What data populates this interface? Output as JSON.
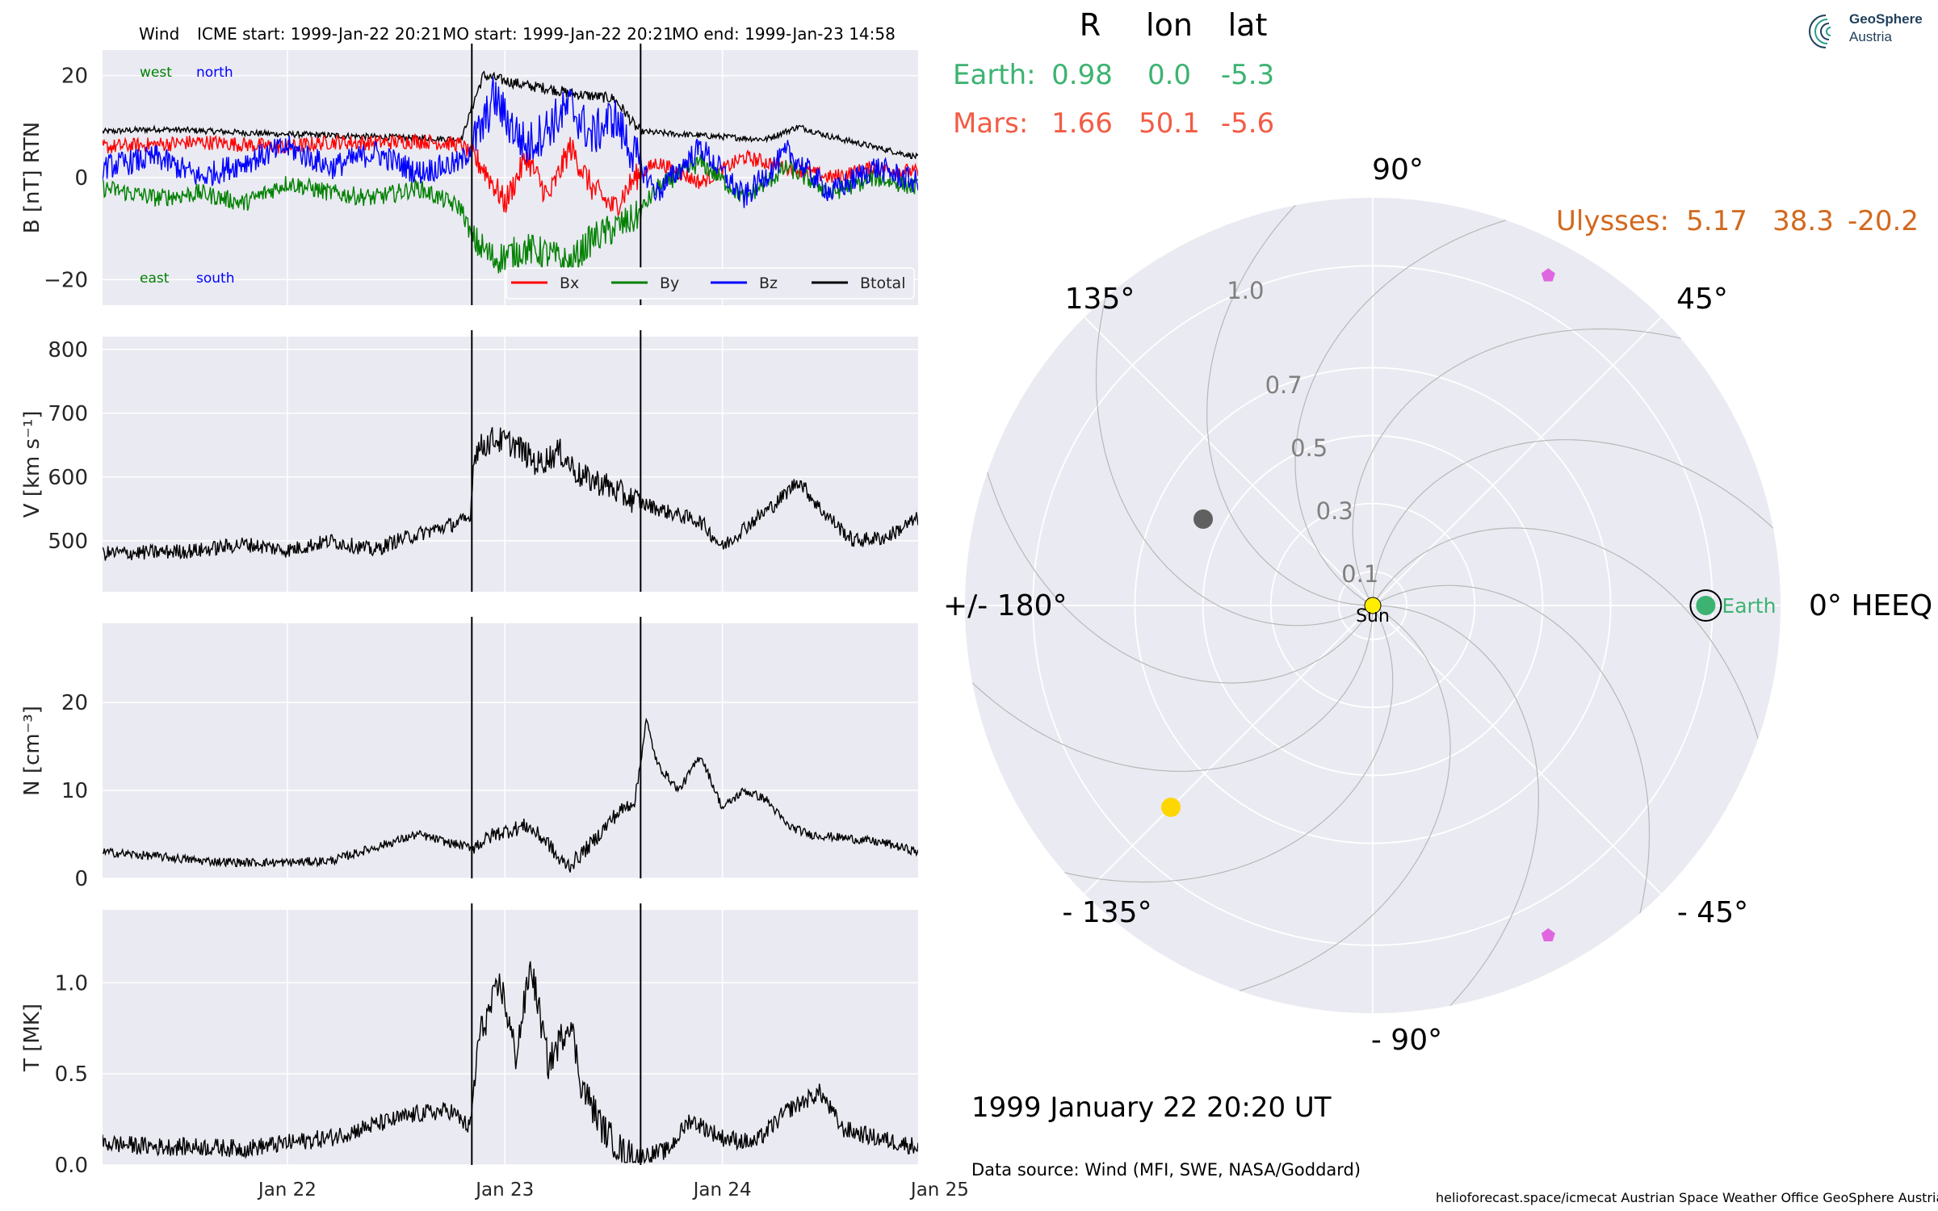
{
  "header": {
    "spacecraft": "Wind",
    "icme_start": "ICME start: 1999-Jan-22 20:21",
    "mo_start": "MO start: 1999-Jan-22 20:21",
    "mo_end": "MO end: 1999-Jan-23 14:58"
  },
  "colors": {
    "panel_bg": "#eaeaf2",
    "bx": "#ff0000",
    "by": "#008000",
    "bz": "#0000ff",
    "btotal": "#000000",
    "earth": "#3cb371",
    "mars": "#f25c45",
    "ulysses": "#d2691e",
    "sun": "#ffee00",
    "planet_yellow": "#ffd700",
    "planet_gray": "#606060",
    "pentagon": "#e066e0"
  },
  "chart_data": [
    {
      "type": "line",
      "name": "magnetic-field",
      "ylabel": "B [nT] RTN",
      "ylim": [
        -25,
        25
      ],
      "yticks": [
        -20,
        0,
        20
      ],
      "ytick_labels": [
        "−20",
        "0",
        "20"
      ],
      "xlim": [
        -0.85,
        2.9
      ],
      "x_unit": "days since 1999-01-22 00:00",
      "xticks": [
        0,
        1,
        2,
        3
      ],
      "xtick_labels": [
        "Jan 22",
        "Jan 23",
        "Jan 24",
        "Jan 25"
      ],
      "event_lines": [
        0.8479,
        1.624
      ],
      "corner_labels": {
        "west": "west",
        "north": "north",
        "east": "east",
        "south": "south"
      },
      "legend": [
        "Bx",
        "By",
        "Bz",
        "Btotal"
      ],
      "legend_placement": "lower-right",
      "series": [
        {
          "name": "Btotal",
          "x": [
            -0.85,
            -0.6,
            -0.4,
            -0.2,
            0.0,
            0.2,
            0.4,
            0.6,
            0.8,
            0.85,
            0.9,
            1.0,
            1.1,
            1.2,
            1.3,
            1.4,
            1.5,
            1.55,
            1.6,
            1.63,
            1.8,
            2.0,
            2.2,
            2.35,
            2.5,
            2.7,
            2.9
          ],
          "y": [
            9,
            9.5,
            9.2,
            8.8,
            8.5,
            8.3,
            8.0,
            7.8,
            7.5,
            14,
            20,
            19,
            18,
            17.5,
            16.5,
            16,
            15.5,
            13,
            10,
            9,
            8.5,
            8,
            7.5,
            10,
            8,
            6,
            4
          ]
        },
        {
          "name": "Bx",
          "x": [
            -0.85,
            -0.6,
            -0.4,
            -0.2,
            0.0,
            0.2,
            0.4,
            0.6,
            0.8,
            0.9,
            1.0,
            1.1,
            1.2,
            1.3,
            1.4,
            1.5,
            1.6,
            1.7,
            1.9,
            2.1,
            2.3,
            2.5,
            2.7,
            2.9
          ],
          "y": [
            6,
            6.5,
            7,
            6.5,
            6,
            7,
            6.8,
            7.2,
            6.5,
            2,
            -5,
            4,
            -4,
            6,
            -2,
            -6,
            0,
            3,
            -1,
            4,
            2,
            0,
            2,
            1
          ]
        },
        {
          "name": "By",
          "x": [
            -0.85,
            -0.6,
            -0.4,
            -0.2,
            0.0,
            0.2,
            0.4,
            0.6,
            0.8,
            0.85,
            0.95,
            1.1,
            1.2,
            1.3,
            1.4,
            1.5,
            1.6,
            1.7,
            1.9,
            2.1,
            2.3,
            2.5,
            2.7,
            2.9
          ],
          "y": [
            -2,
            -4,
            -3,
            -5,
            -1,
            -3,
            -4,
            -2,
            -6,
            -12,
            -16,
            -14,
            -15,
            -17,
            -12,
            -10,
            -8,
            -2,
            3,
            -4,
            2,
            -3,
            0,
            -2
          ]
        },
        {
          "name": "Bz",
          "x": [
            -0.85,
            -0.6,
            -0.4,
            -0.2,
            0.0,
            0.2,
            0.4,
            0.6,
            0.8,
            0.9,
            0.95,
            1.0,
            1.1,
            1.2,
            1.3,
            1.4,
            1.5,
            1.6,
            1.7,
            1.9,
            2.1,
            2.3,
            2.5,
            2.7,
            2.9
          ],
          "y": [
            2,
            4,
            0,
            3,
            6,
            2,
            5,
            1,
            3,
            10,
            16,
            12,
            6,
            10,
            14,
            8,
            12,
            4,
            -3,
            6,
            -4,
            5,
            -3,
            2,
            -1
          ]
        }
      ]
    },
    {
      "type": "line",
      "name": "velocity",
      "ylabel": "V [km s⁻¹]",
      "ylim": [
        420,
        820
      ],
      "yticks": [
        500,
        600,
        700,
        800
      ],
      "xlim": [
        -0.85,
        2.9
      ],
      "xticks": [
        0,
        1,
        2,
        3
      ],
      "event_lines": [
        0.8479,
        1.624
      ],
      "series": [
        {
          "name": "V",
          "x": [
            -0.85,
            -0.6,
            -0.4,
            -0.2,
            0.0,
            0.2,
            0.4,
            0.5,
            0.6,
            0.7,
            0.8,
            0.84,
            0.86,
            0.95,
            1.05,
            1.15,
            1.25,
            1.35,
            1.45,
            1.55,
            1.62,
            1.75,
            1.9,
            2.0,
            2.1,
            2.25,
            2.35,
            2.45,
            2.6,
            2.75,
            2.9
          ],
          "y": [
            480,
            482,
            485,
            495,
            485,
            500,
            485,
            500,
            510,
            520,
            530,
            535,
            640,
            660,
            650,
            620,
            640,
            600,
            590,
            570,
            560,
            545,
            530,
            490,
            520,
            560,
            595,
            550,
            500,
            505,
            535
          ]
        }
      ]
    },
    {
      "type": "line",
      "name": "density",
      "ylabel": "N [cm⁻³]",
      "ylim": [
        0,
        29
      ],
      "yticks": [
        0,
        10,
        20
      ],
      "xlim": [
        -0.85,
        2.9
      ],
      "xticks": [
        0,
        1,
        2,
        3
      ],
      "event_lines": [
        0.8479,
        1.624
      ],
      "series": [
        {
          "name": "N",
          "x": [
            -0.85,
            -0.6,
            -0.4,
            -0.2,
            0.0,
            0.2,
            0.4,
            0.6,
            0.75,
            0.85,
            0.95,
            1.1,
            1.2,
            1.25,
            1.3,
            1.4,
            1.5,
            1.6,
            1.65,
            1.7,
            1.8,
            1.9,
            2.0,
            2.1,
            2.2,
            2.3,
            2.4,
            2.6,
            2.75,
            2.9
          ],
          "y": [
            3,
            2.5,
            2,
            1.8,
            1.8,
            2,
            3.5,
            5,
            4,
            3.5,
            5,
            6,
            4,
            2,
            1.5,
            4,
            7,
            9,
            18,
            13,
            10,
            14,
            8,
            10,
            9,
            6,
            5,
            4.5,
            4,
            3
          ]
        }
      ]
    },
    {
      "type": "line",
      "name": "temperature",
      "ylabel": "T [MK]",
      "ylim": [
        0,
        1.4
      ],
      "yticks": [
        0.0,
        0.5,
        1.0
      ],
      "ytick_labels": [
        "0.0",
        "0.5",
        "1.0"
      ],
      "xlim": [
        -0.85,
        2.9
      ],
      "xticks": [
        0,
        1,
        2,
        3
      ],
      "xtick_labels": [
        "Jan 22",
        "Jan 23",
        "Jan 24",
        "Jan 25"
      ],
      "event_lines": [
        0.8479,
        1.624
      ],
      "series": [
        {
          "name": "T",
          "x": [
            -0.85,
            -0.6,
            -0.4,
            -0.2,
            0.0,
            0.2,
            0.4,
            0.6,
            0.75,
            0.84,
            0.88,
            0.98,
            1.05,
            1.12,
            1.2,
            1.3,
            1.35,
            1.45,
            1.55,
            1.63,
            1.75,
            1.85,
            2.0,
            2.15,
            2.3,
            2.45,
            2.55,
            2.7,
            2.9
          ],
          "y": [
            0.12,
            0.1,
            0.1,
            0.09,
            0.12,
            0.15,
            0.22,
            0.28,
            0.3,
            0.2,
            0.7,
            1.0,
            0.6,
            1.1,
            0.55,
            0.8,
            0.45,
            0.2,
            0.06,
            0.05,
            0.08,
            0.25,
            0.15,
            0.12,
            0.3,
            0.4,
            0.2,
            0.15,
            0.1
          ]
        }
      ]
    },
    {
      "type": "scatter",
      "name": "heliospheric-position-polar",
      "coordinate_system": "0° HEEQ",
      "angle_labels": [
        {
          "deg": 0,
          "text": "0° HEEQ"
        },
        {
          "deg": 45,
          "text": "45°"
        },
        {
          "deg": 90,
          "text": "90°"
        },
        {
          "deg": 135,
          "text": "135°"
        },
        {
          "deg": 180,
          "text": "+/- 180°"
        },
        {
          "deg": -135,
          "text": "- 135°"
        },
        {
          "deg": -90,
          "text": "- 90°"
        },
        {
          "deg": -45,
          "text": "- 45°"
        }
      ],
      "radial_ticks": [
        0.1,
        0.3,
        0.5,
        0.7,
        1.0
      ],
      "radial_tick_labels": [
        "0.1",
        "0.3",
        "0.5",
        "0.7",
        "1.0"
      ],
      "rlim": [
        0,
        1.2
      ],
      "position_table": {
        "headers": [
          "R",
          "lon",
          "lat"
        ],
        "rows": [
          {
            "name": "Earth:",
            "R": "0.98",
            "lon": "0.0",
            "lat": "-5.3"
          },
          {
            "name": "Mars:",
            "R": "1.66",
            "lon": "50.1",
            "lat": "-5.6"
          },
          {
            "name": "Ulysses:",
            "R": "5.17",
            "lon": "38.3",
            "lat": "-20.2"
          }
        ]
      },
      "points": [
        {
          "label": "Sun",
          "lon": 0,
          "r": 0,
          "marker": "sun"
        },
        {
          "label": "Earth",
          "lon": 0.0,
          "r": 0.98,
          "marker": "earth"
        },
        {
          "label": "",
          "lon": 153,
          "r": 0.56,
          "marker": "gray"
        },
        {
          "label": "",
          "lon": -135,
          "r": 0.84,
          "marker": "yellow"
        },
        {
          "label": "",
          "lon": 62,
          "r": 1.1,
          "marker": "pentagon"
        },
        {
          "label": "",
          "lon": -62,
          "r": 1.1,
          "marker": "pentagon"
        }
      ]
    }
  ],
  "footer": {
    "datetime": "1999 January 22  20:20 UT",
    "data_source": "Data source: Wind (MFI, SWE, NASA/Goddard)",
    "credits": "helioforecast.space/icmecat   Austrian Space Weather Office   GeoSphere Austria"
  },
  "logo": {
    "line1": "GeoSphere",
    "line2": "Austria"
  }
}
